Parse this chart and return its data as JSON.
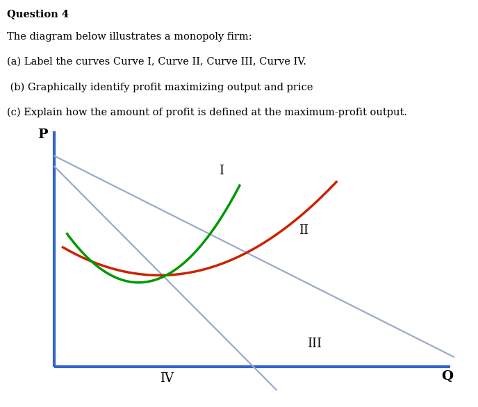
{
  "xlabel": "Q",
  "ylabel": "P",
  "curve_I_label": "I",
  "curve_II_label": "II",
  "curve_III_label": "III",
  "curve_IV_label": "IV",
  "curve_I_color": "#009900",
  "curve_II_color": "#cc2200",
  "curve_III_color": "#99aacc",
  "curve_IV_color": "#99aacc",
  "axis_color": "#3366cc",
  "background_color": "#ffffff",
  "text_color": "#000000",
  "title_bold": "Question 4",
  "title_lines": [
    "The diagram below illustrates a monopoly firm:",
    "(a) Label the curves Curve I, Curve II, Curve III, Curve IV.",
    " (b) Graphically identify profit maximizing output and price",
    "(c) Explain how the amount of profit is defined at the maximum-profit output."
  ],
  "title_fontsize": 10.5,
  "label_fontsize": 13
}
